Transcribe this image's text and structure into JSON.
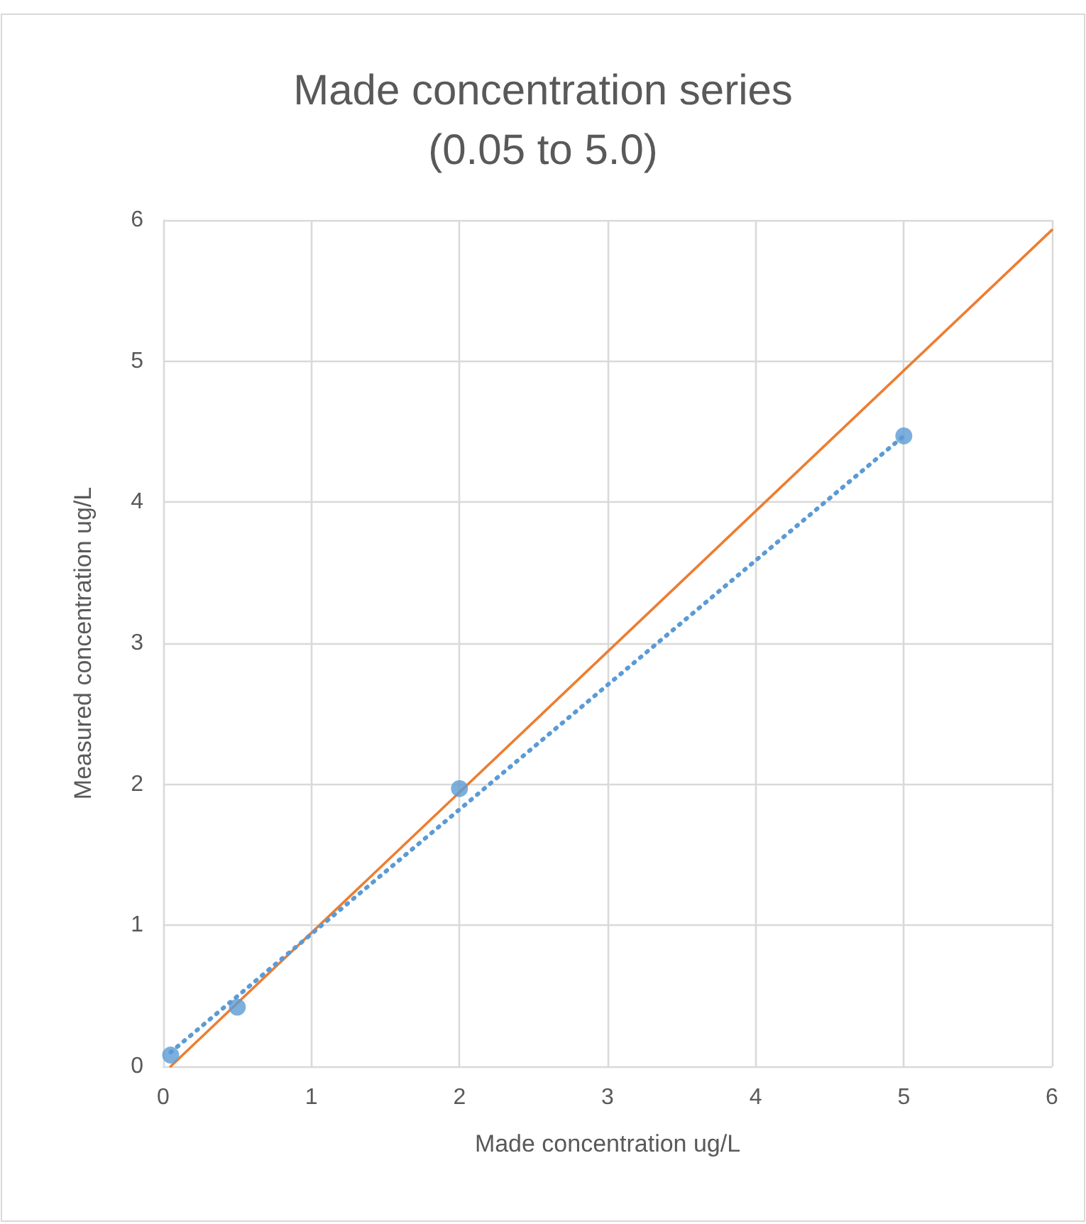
{
  "chart_data": {
    "type": "scatter",
    "title": "Made concentration series\n(0.05 to 5.0)",
    "xlabel": "Made concentration ug/L",
    "ylabel": "Measured concentration ug/L",
    "xlim": [
      0,
      6
    ],
    "xticks": [
      0,
      1,
      2,
      3,
      4,
      5,
      6
    ],
    "ylim": [
      0,
      6
    ],
    "yticks": [
      0,
      1,
      2,
      3,
      4,
      5,
      6
    ],
    "grid": true,
    "series": [
      {
        "type": "scatter",
        "color": "#5b9bd5",
        "x": [
          0.05,
          0.5,
          2,
          5
        ],
        "values": [
          0.08,
          0.42,
          1.97,
          4.47
        ],
        "marker": "circle"
      },
      {
        "type": "line",
        "color": "#5b9bd5",
        "x": [
          0.05,
          5
        ],
        "values": [
          0.1,
          4.47
        ],
        "marker": "none",
        "line_style": "dotted"
      },
      {
        "type": "line",
        "color": "#ed7d31",
        "x": [
          0.05,
          6
        ],
        "values": [
          0,
          5.93
        ],
        "marker": "none",
        "line_style": "solid"
      }
    ]
  }
}
